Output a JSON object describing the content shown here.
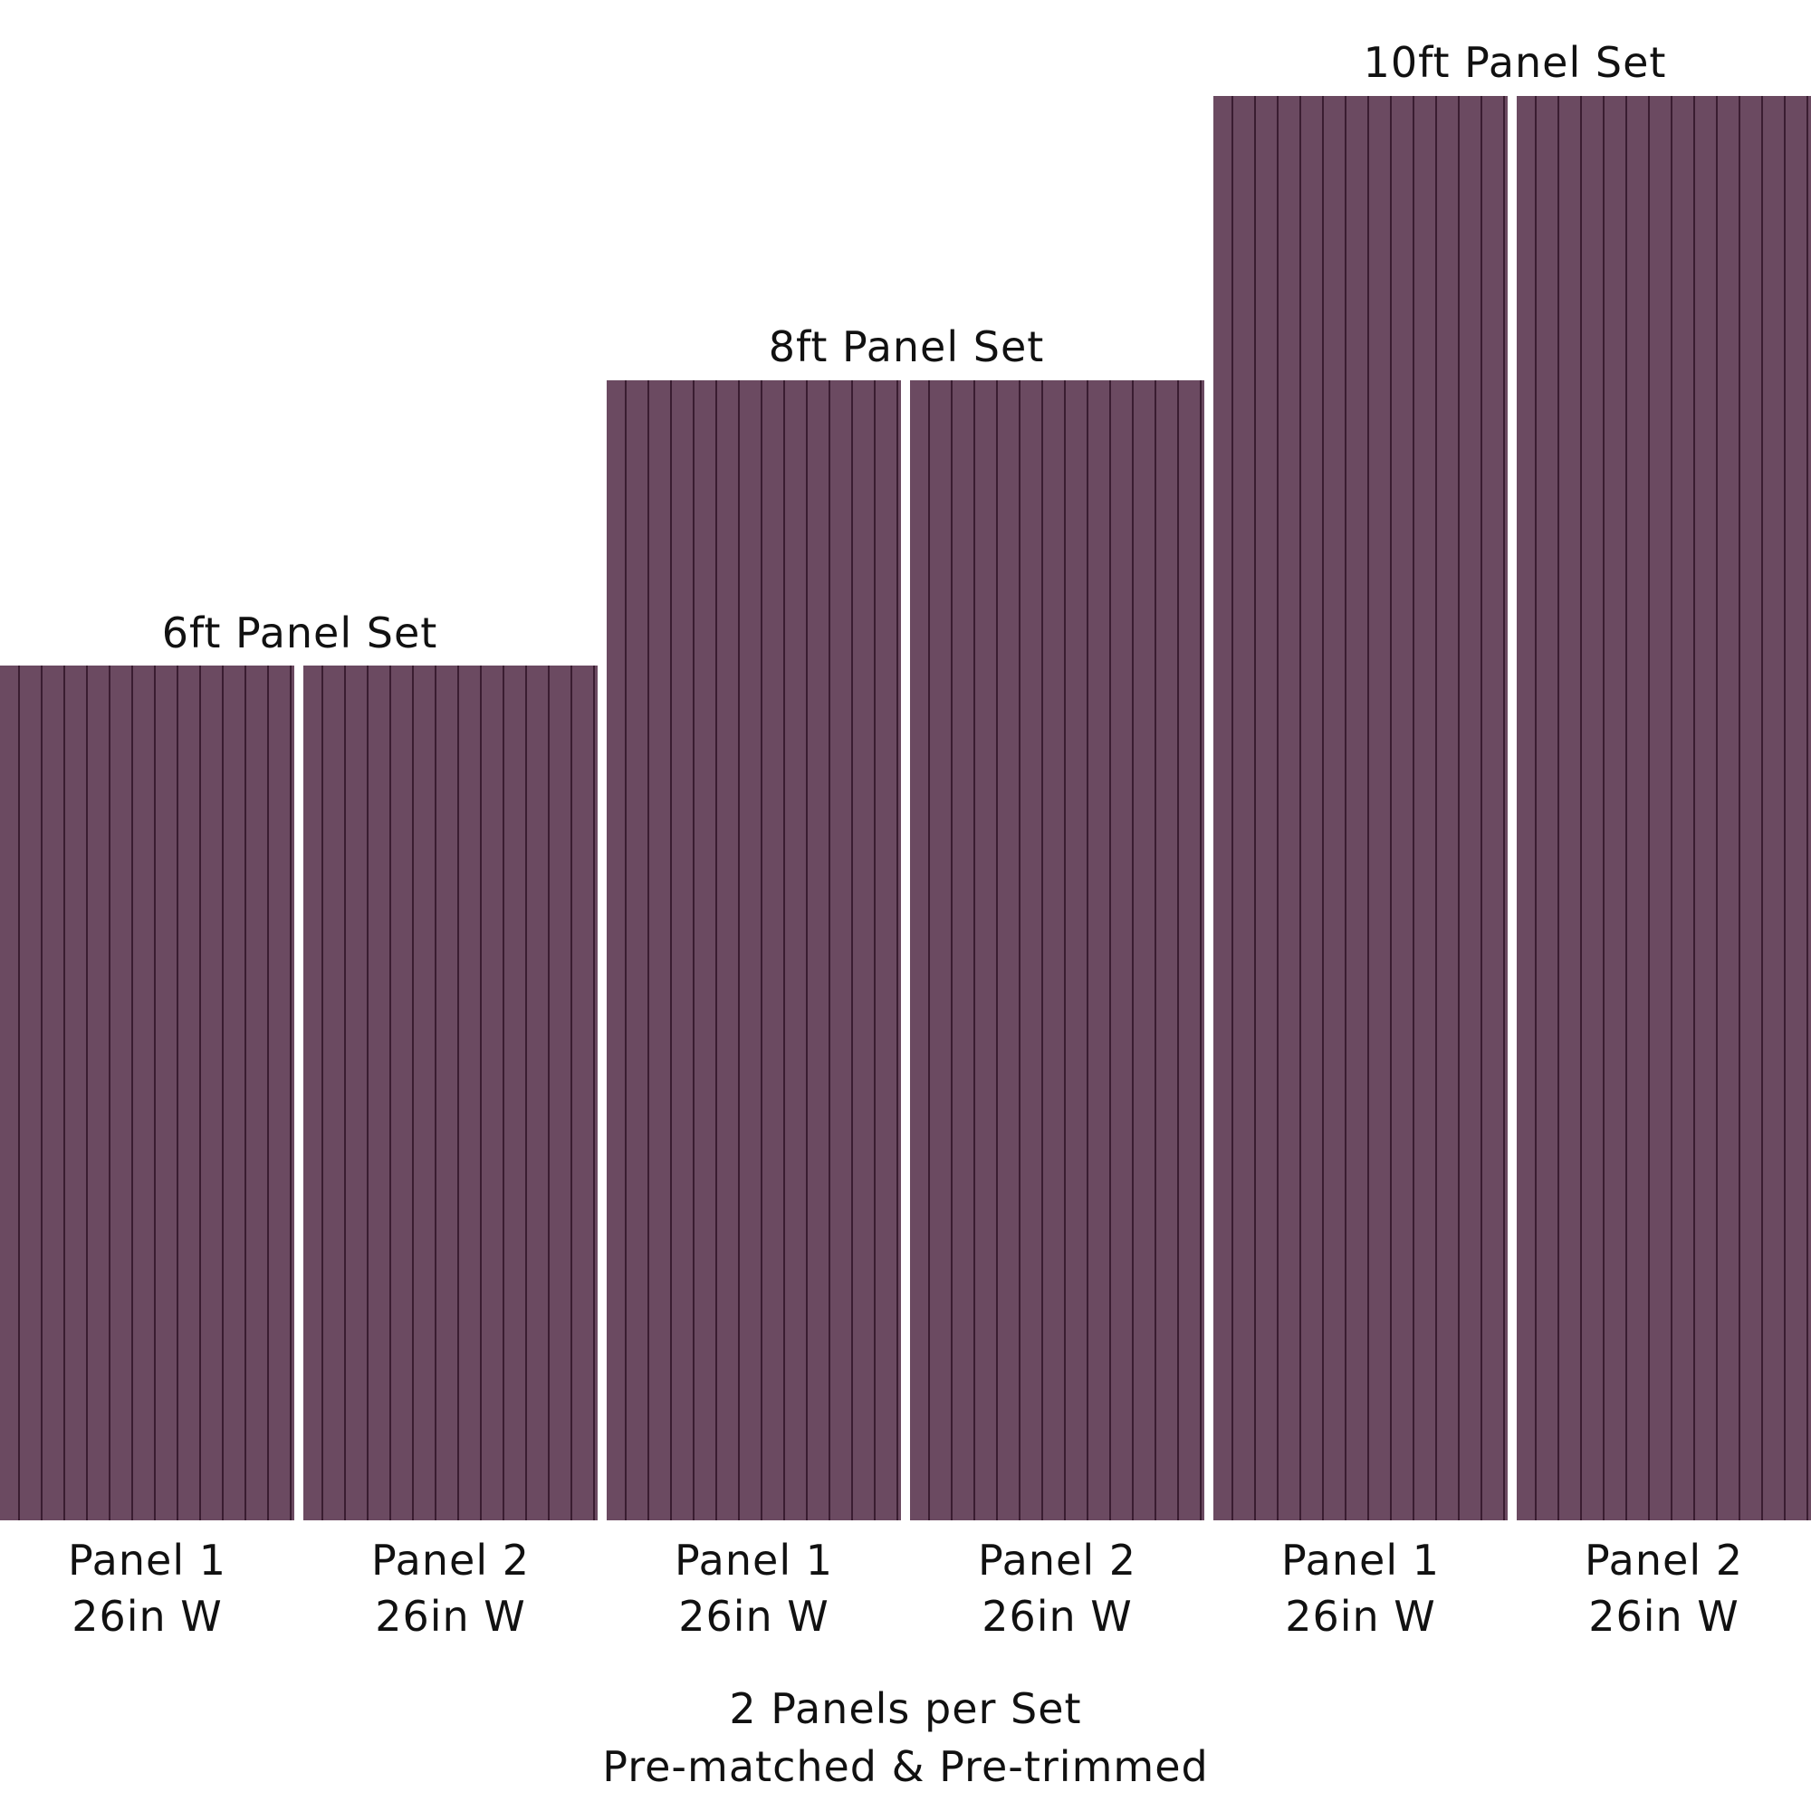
{
  "sets": [
    {
      "title": "6ft Panel Set",
      "height_ft": 6,
      "panels": [
        {
          "name": "Panel 1",
          "width": "26in W"
        },
        {
          "name": "Panel 2",
          "width": "26in W"
        }
      ]
    },
    {
      "title": "8ft Panel Set",
      "height_ft": 8,
      "panels": [
        {
          "name": "Panel 1",
          "width": "26in W"
        },
        {
          "name": "Panel 2",
          "width": "26in W"
        }
      ]
    },
    {
      "title": "10ft Panel Set",
      "height_ft": 10,
      "panels": [
        {
          "name": "Panel 1",
          "width": "26in W"
        },
        {
          "name": "Panel 2",
          "width": "26in W"
        }
      ]
    }
  ],
  "footer": {
    "line1": "2 Panels per Set",
    "line2": "Pre-matched & Pre-trimmed"
  },
  "colors": {
    "panel_fill": "#6b4a61",
    "panel_groove": "#3a1d31"
  }
}
